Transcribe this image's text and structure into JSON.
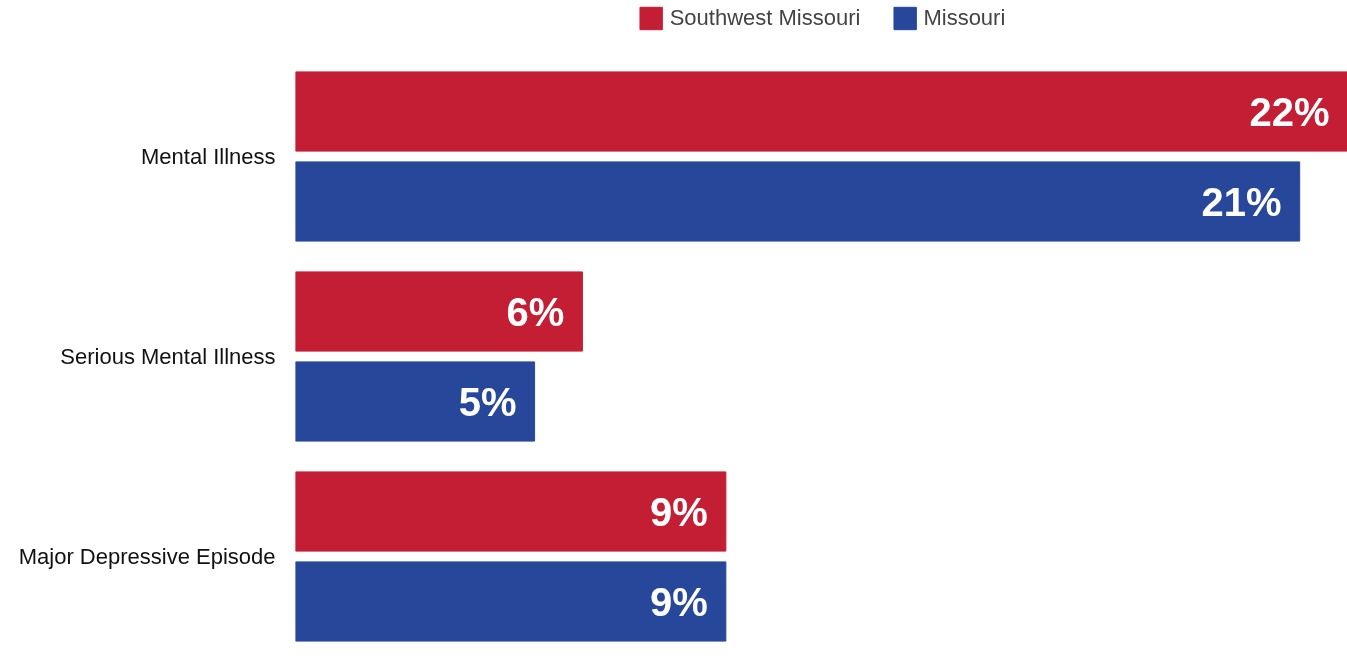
{
  "chart_data": {
    "type": "bar",
    "orientation": "horizontal",
    "categories": [
      "Mental Illness",
      "Serious Mental Illness",
      "Major Depressive Episode"
    ],
    "series": [
      {
        "name": "Southwest Missouri",
        "color": "#c41e35",
        "values": [
          22,
          6,
          9
        ],
        "value_labels": [
          "22%",
          "6%",
          "9%"
        ]
      },
      {
        "name": "Missouri",
        "color": "#27489a",
        "values": [
          21,
          5,
          9
        ],
        "value_labels": [
          "21%",
          "5%",
          "9%"
        ]
      }
    ],
    "legend": "top",
    "grid": false,
    "tick_labels": "y"
  }
}
